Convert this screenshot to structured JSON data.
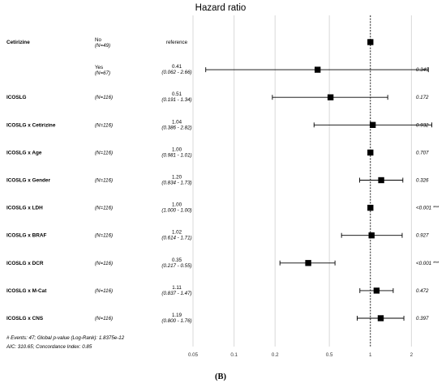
{
  "chart_data": {
    "type": "forest",
    "title": "Hazard ratio",
    "x_scale": "log",
    "xlim": [
      0.05,
      3
    ],
    "reference_line": 1,
    "x_ticks": [
      "0.05",
      "0.1",
      "0.2",
      "0.5",
      "1",
      "2"
    ],
    "grid": true,
    "rows": [
      {
        "variable": "Cetirizine",
        "level": "No",
        "n": "(N=49)",
        "reference": "reference",
        "hr": 1.0
      },
      {
        "variable": "",
        "level": "Yes",
        "n": "(N=67)",
        "hr": 0.41,
        "hr_label": "0.41",
        "ci_low": 0.062,
        "ci_high": 2.66,
        "ci_label": "(0.062 - 2.66)",
        "p": "0.349"
      },
      {
        "variable": "ICOSLG",
        "level": "",
        "n": "(N=116)",
        "hr": 0.51,
        "hr_label": "0.51",
        "ci_low": 0.191,
        "ci_high": 1.34,
        "ci_label": "(0.191 - 1.34)",
        "p": "0.172"
      },
      {
        "variable": "ICOSLG x Cetirizine",
        "level": "",
        "n": "(N=116)",
        "hr": 1.04,
        "hr_label": "1.04",
        "ci_low": 0.386,
        "ci_high": 2.82,
        "ci_label": "(0.386 - 2.82)",
        "p": "0.932"
      },
      {
        "variable": "ICOSLG x Age",
        "level": "",
        "n": "(N=116)",
        "hr": 1.0,
        "hr_label": "1.00",
        "ci_low": 0.981,
        "ci_high": 1.01,
        "ci_label": "(0.981 - 1.01)",
        "p": "0.707"
      },
      {
        "variable": "ICOSLG x Gender",
        "level": "",
        "n": "(N=116)",
        "hr": 1.2,
        "hr_label": "1.20",
        "ci_low": 0.834,
        "ci_high": 1.73,
        "ci_label": "(0.834 - 1.73)",
        "p": "0.326"
      },
      {
        "variable": "ICOSLG x LDH",
        "level": "",
        "n": "(N=116)",
        "hr": 1.0,
        "hr_label": "1.00",
        "ci_low": 1.0,
        "ci_high": 1.0,
        "ci_label": "(1.000 - 1.00)",
        "p": "<0.001 ***"
      },
      {
        "variable": "ICOSLG x BRAF",
        "level": "",
        "n": "(N=116)",
        "hr": 1.02,
        "hr_label": "1.02",
        "ci_low": 0.614,
        "ci_high": 1.71,
        "ci_label": "(0.614 - 1.71)",
        "p": "0.927"
      },
      {
        "variable": "ICOSLG x DCR",
        "level": "",
        "n": "(N=116)",
        "hr": 0.35,
        "hr_label": "0.35",
        "ci_low": 0.217,
        "ci_high": 0.55,
        "ci_label": "(0.217 - 0.55)",
        "p": "<0.001 ***"
      },
      {
        "variable": "ICOSLG x M-Cat",
        "level": "",
        "n": "(N=116)",
        "hr": 1.11,
        "hr_label": "1.11",
        "ci_low": 0.837,
        "ci_high": 1.47,
        "ci_label": "(0.837 - 1.47)",
        "p": "0.472"
      },
      {
        "variable": "ICOSLG x CNS",
        "level": "",
        "n": "(N=116)",
        "hr": 1.19,
        "hr_label": "1.19",
        "ci_low": 0.8,
        "ci_high": 1.76,
        "ci_label": "(0.800 - 1.76)",
        "p": "0.397"
      }
    ],
    "footnote_1": "# Events: 47; Global p-value (Log-Rank): 1.8375e-12",
    "footnote_2": "AIC: 310.65; Concordance Index: 0.85",
    "panel_label": "(B)"
  }
}
